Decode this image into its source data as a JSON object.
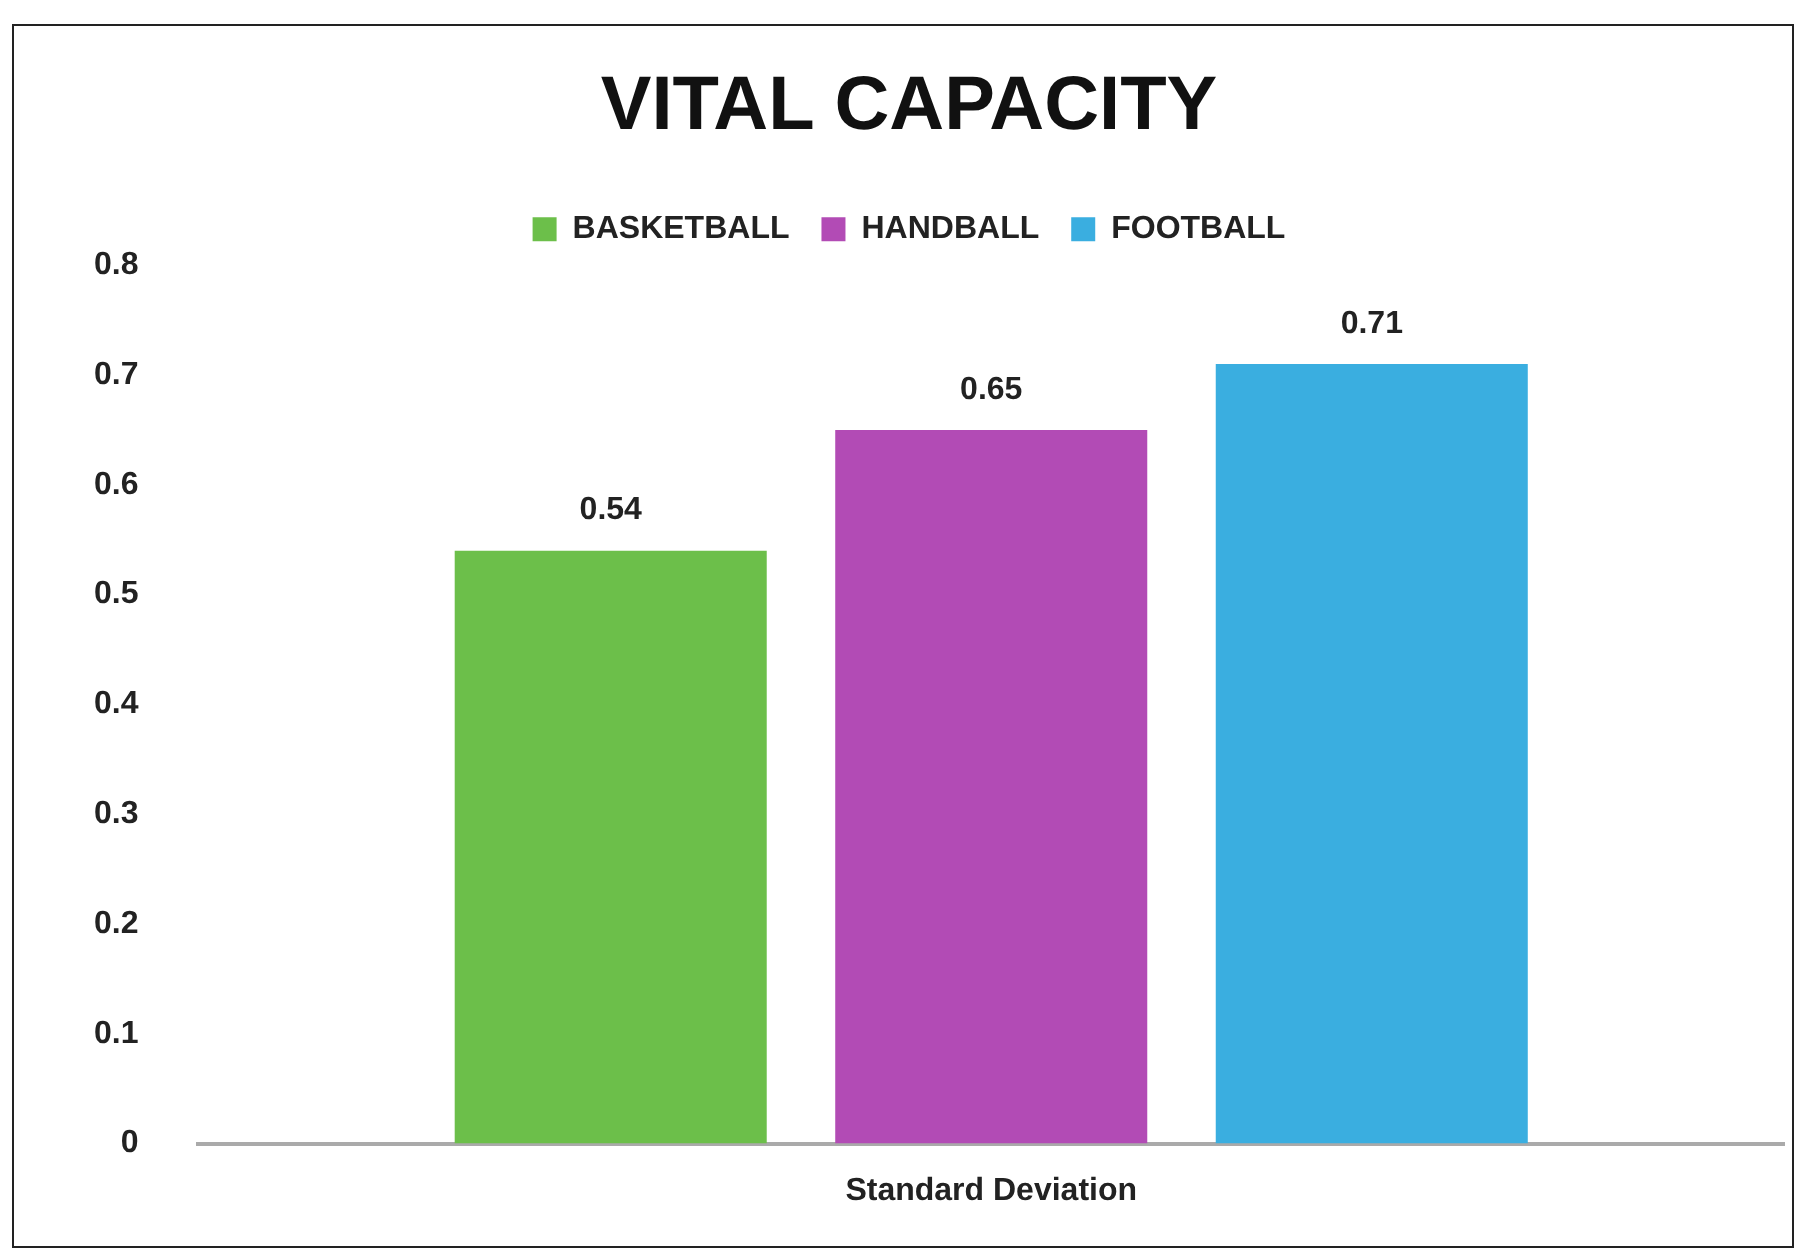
{
  "chart_data": {
    "type": "bar",
    "title": "VITAL CAPACITY",
    "categories": [
      "Standard Deviation"
    ],
    "series": [
      {
        "name": "BASKETBALL",
        "color": "#6cbf4a",
        "values": [
          0.54
        ]
      },
      {
        "name": "HANDBALL",
        "color": "#b24bb5",
        "values": [
          0.65
        ]
      },
      {
        "name": "FOOTBALL",
        "color": "#3aaee0",
        "values": [
          0.71
        ]
      }
    ],
    "ylim": [
      0,
      0.8
    ],
    "yticks": [
      0,
      0.1,
      0.2,
      0.3,
      0.4,
      0.5,
      0.6,
      0.7,
      0.8
    ],
    "grid": false,
    "legend": "top",
    "data_labels": true
  }
}
